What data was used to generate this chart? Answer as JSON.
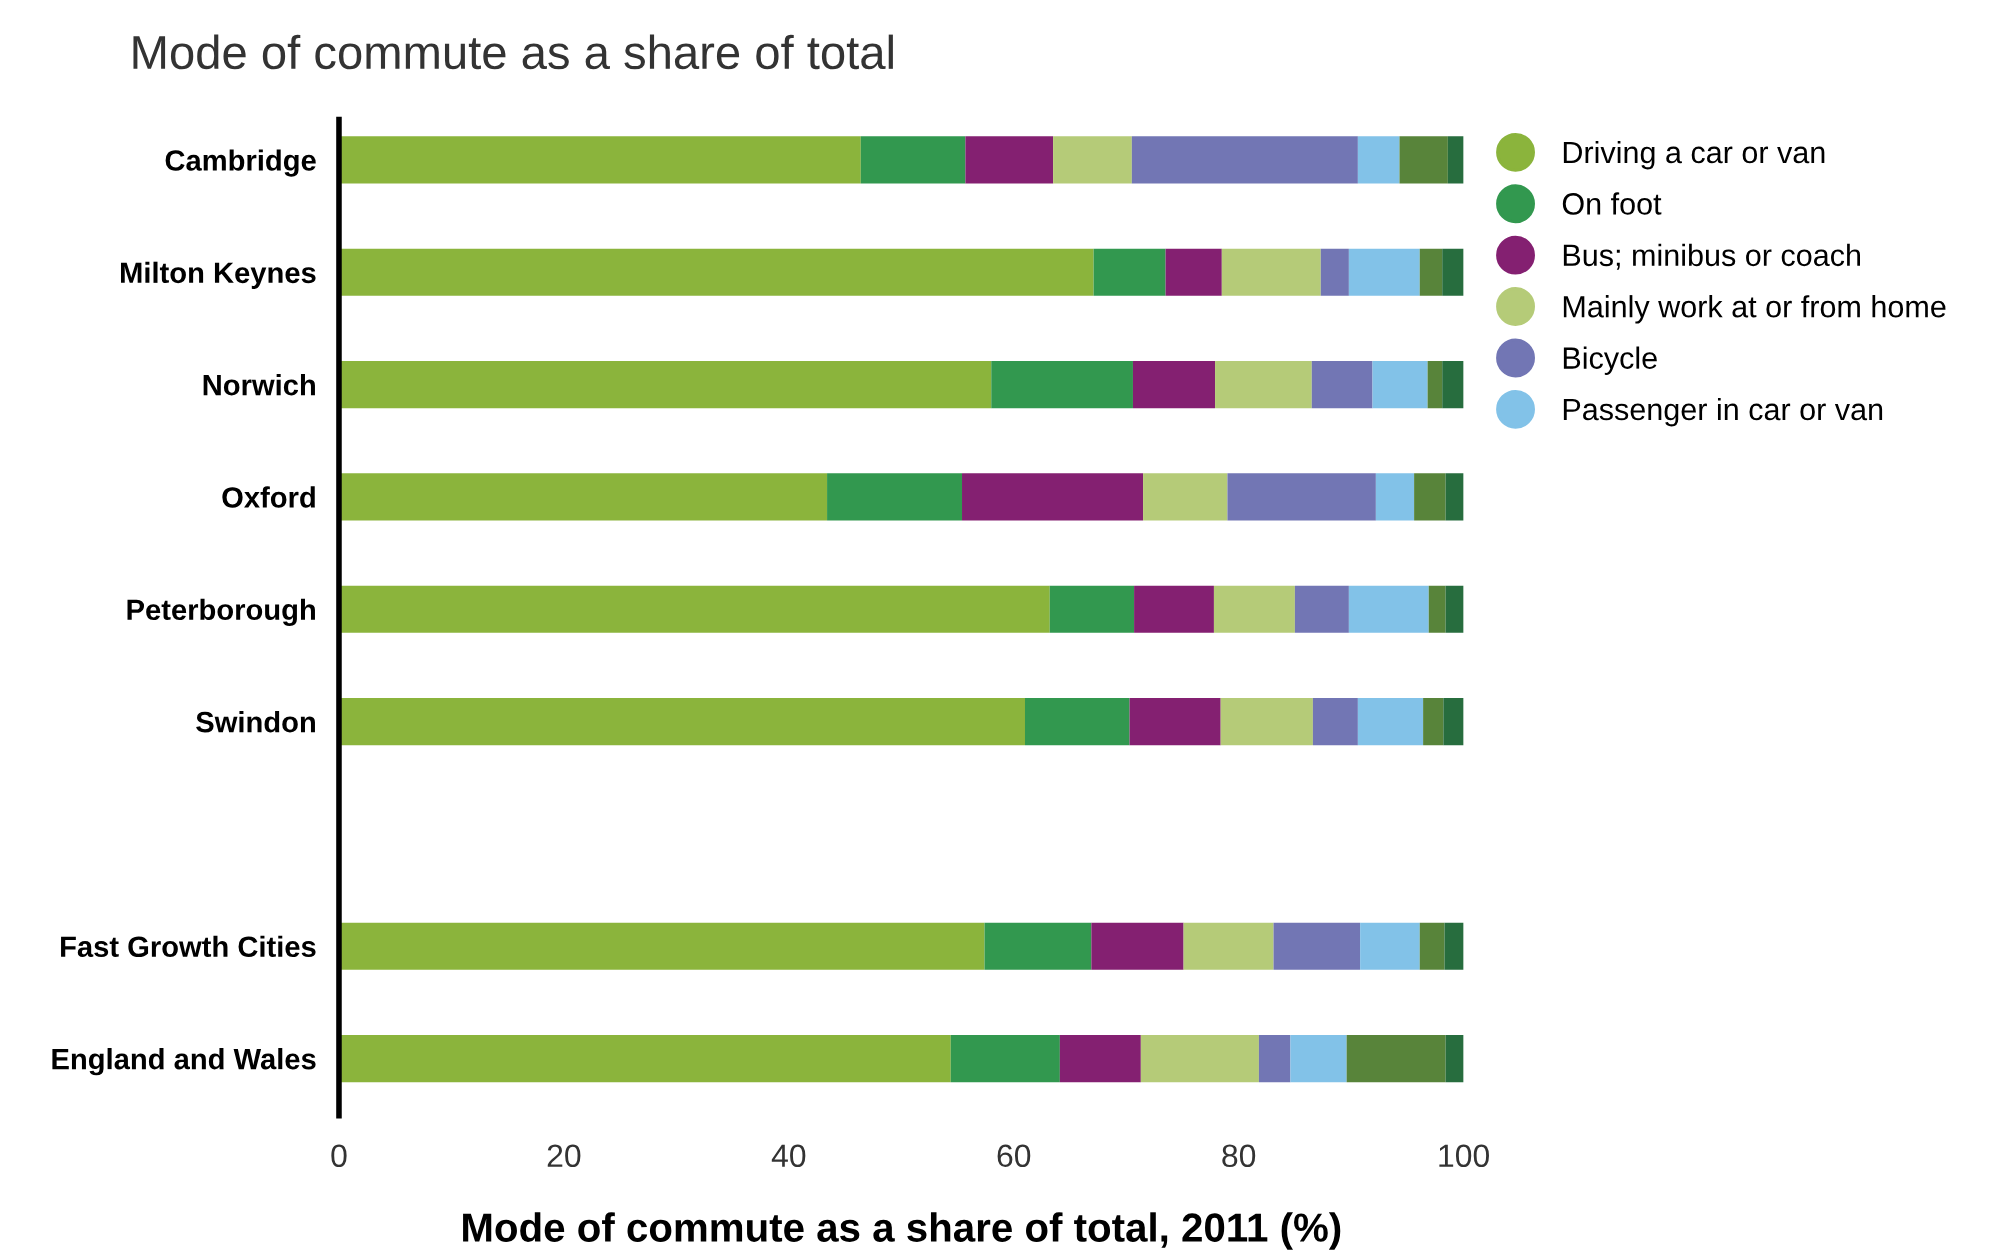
{
  "chart_data": {
    "type": "bar",
    "orientation": "horizontal",
    "stacked": true,
    "title": "Mode of commute as a share of total",
    "xlabel": "Mode of commute as a share of total, 2011 (%)",
    "categories": [
      "Cambridge",
      "Milton Keynes",
      "Norwich",
      "Oxford",
      "Peterborough",
      "Swindon",
      null,
      "Fast Growth Cities",
      "England and Wales"
    ],
    "series": [
      {
        "name": "Driving a car or van",
        "color": "#8bb43c",
        "values": [
          46.4,
          67.1,
          58.0,
          43.4,
          63.2,
          61.0,
          null,
          57.4,
          54.4
        ]
      },
      {
        "name": "On foot",
        "color": "#32984f",
        "values": [
          9.3,
          6.4,
          12.6,
          12.0,
          7.5,
          9.3,
          null,
          9.5,
          9.7
        ]
      },
      {
        "name": "Bus; minibus or coach",
        "color": "#842071",
        "values": [
          7.8,
          5.0,
          7.3,
          16.1,
          7.1,
          8.1,
          null,
          8.2,
          7.2
        ]
      },
      {
        "name": "Mainly work at or from home",
        "color": "#b5cb78",
        "values": [
          7.0,
          8.8,
          8.6,
          7.5,
          7.2,
          8.2,
          null,
          8.0,
          10.5
        ]
      },
      {
        "name": "Bicycle",
        "color": "#7276b4",
        "values": [
          20.1,
          2.5,
          5.4,
          13.2,
          4.8,
          4.0,
          null,
          7.7,
          2.8
        ]
      },
      {
        "name": "Passenger in car or van",
        "color": "#82c2e8",
        "values": [
          3.7,
          6.3,
          4.9,
          3.4,
          7.1,
          5.8,
          null,
          5.3,
          5.0
        ]
      },
      {
        "color": "#58843a",
        "values": [
          4.3,
          2.0,
          1.3,
          2.8,
          1.5,
          1.8,
          null,
          2.2,
          8.8
        ]
      },
      {
        "color": "#276d3e",
        "values": [
          1.4,
          1.9,
          1.9,
          1.6,
          1.6,
          1.8,
          null,
          1.7,
          1.6
        ]
      }
    ],
    "xlim": [
      0,
      100
    ],
    "xticks": [
      0,
      20,
      40,
      60,
      80,
      100
    ],
    "legend": "right",
    "marker": "circle",
    "grid": false
  }
}
